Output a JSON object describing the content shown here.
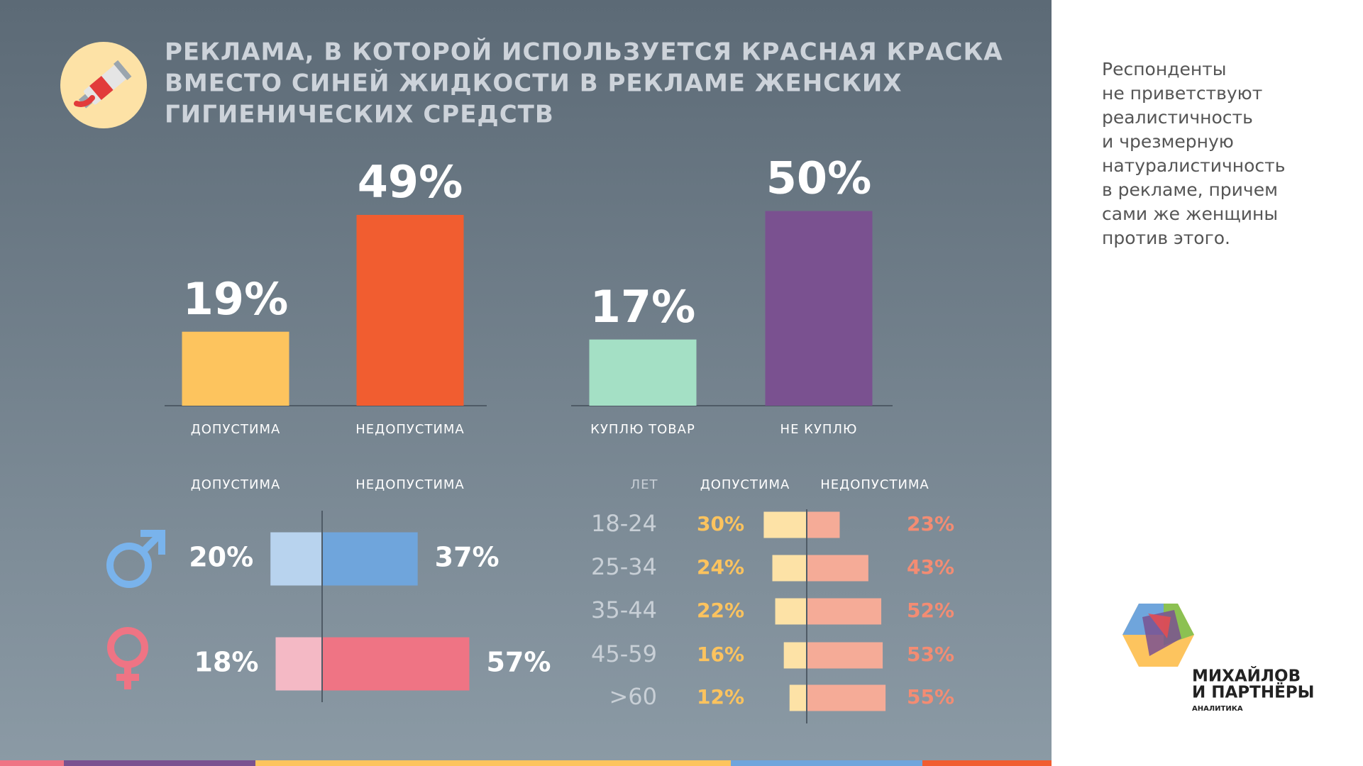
{
  "title": [
    "РЕКЛАМА, В КОТОРОЙ ИСПОЛЬЗУЕТСЯ КРАСНАЯ КРАСКА",
    "ВМЕСТО СИНЕЙ ЖИДКОСТИ В РЕКЛАМЕ ЖЕНСКИХ",
    "ГИГИЕНИЧЕСКИХ СРЕДСТВ"
  ],
  "note": [
    "Респонденты",
    "не приветствуют",
    "реалистичность",
    "и чрезмерную",
    "натуралистичность",
    "в рекламе, причем",
    "сами же женщины",
    "против этого."
  ],
  "logo": [
    "МИХАЙЛОВ",
    "И ПАРТНЁРЫ",
    "АНАЛИТИКА"
  ],
  "chart_data": [
    {
      "type": "bar",
      "categories": [
        "ДОПУСТИМА",
        "НЕДОПУСТИМА"
      ],
      "values": [
        19,
        49
      ],
      "value_labels": [
        "19%",
        "49%"
      ],
      "colors": [
        "#fdc45e",
        "#f15d30"
      ]
    },
    {
      "type": "bar",
      "categories": [
        "КУПЛЮ ТОВАР",
        "НЕ КУПЛЮ"
      ],
      "values": [
        17,
        50
      ],
      "value_labels": [
        "17%",
        "50%"
      ],
      "colors": [
        "#a4e0c5",
        "#7a5190"
      ]
    },
    {
      "type": "diverging_bar",
      "categories": [
        null,
        null
      ],
      "series": [
        {
          "name": "ДОПУСТИМА",
          "colors": [
            "#b8d3ee",
            "#f4b9c5"
          ],
          "label_color": "#ffffff",
          "values": [
            20,
            18
          ],
          "value_labels": [
            "20%",
            "18%"
          ]
        },
        {
          "name": "НЕДОПУСТИМА",
          "colors": [
            "#6fa5dc",
            "#ef7484"
          ],
          "label_color": "#ffffff",
          "values": [
            37,
            57
          ],
          "value_labels": [
            "37%",
            "57%"
          ]
        }
      ]
    },
    {
      "type": "diverging_bar",
      "category_label": "ЛЕТ",
      "categories": [
        "18-24",
        "25-34",
        "35-44",
        "45-59",
        ">60"
      ],
      "series": [
        {
          "name": "ДОПУСТИМА",
          "color": "#fde2a6",
          "label_color": "#fcc35e",
          "values": [
            30,
            24,
            22,
            16,
            12
          ],
          "value_labels": [
            "30%",
            "24%",
            "22%",
            "16%",
            "12%"
          ]
        },
        {
          "name": "НЕДОПУСТИМА",
          "color": "#f5ab97",
          "label_color": "#f38c73",
          "values": [
            23,
            43,
            52,
            53,
            55
          ],
          "value_labels": [
            "23%",
            "43%",
            "52%",
            "53%",
            "55%"
          ]
        }
      ]
    }
  ]
}
